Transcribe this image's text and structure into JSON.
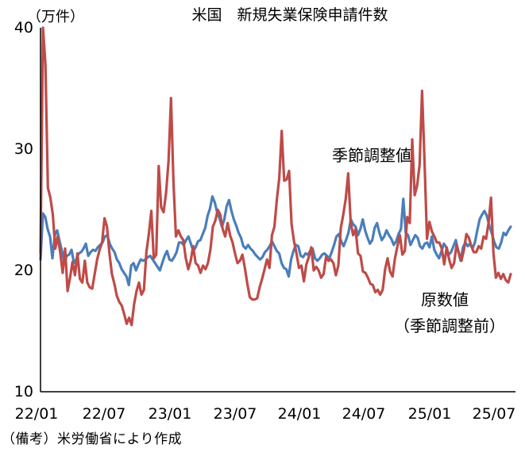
{
  "chart_data": {
    "type": "line",
    "title": "米国　新規失業保険申請件数",
    "unit_label": "（万件）",
    "ylim": [
      10,
      40
    ],
    "y_ticks": [
      10,
      20,
      30,
      40
    ],
    "x_ticks": [
      "22/01",
      "22/07",
      "23/01",
      "23/07",
      "24/01",
      "24/07",
      "25/01",
      "25/07"
    ],
    "grid": false,
    "series": [
      {
        "name": "季節調整値",
        "label": "季節調整値",
        "color": "#4a7ebb",
        "values": [
          20.9,
          24.7,
          24.4,
          23.4,
          22.8,
          21.0,
          22.9,
          23.3,
          22.4,
          21.6,
          20.7,
          21.2,
          21.3,
          21.7,
          20.6,
          20.9,
          21.4,
          21.5,
          21.8,
          22.2,
          21.2,
          21.5,
          21.7,
          21.6,
          21.9,
          22.1,
          22.3,
          22.8,
          22.9,
          22.2,
          21.8,
          21.5,
          20.9,
          20.6,
          20.1,
          19.8,
          19.5,
          18.8,
          20.4,
          20.6,
          20.0,
          20.5,
          20.9,
          20.8,
          20.9,
          21.1,
          21.2,
          20.9,
          20.6,
          20.3,
          20.0,
          20.6,
          21.2,
          21.6,
          20.9,
          20.8,
          21.1,
          21.5,
          22.3,
          22.3,
          22.1,
          22.5,
          22.8,
          22.2,
          21.6,
          21.9,
          22.4,
          22.5,
          23.0,
          23.5,
          24.5,
          25.1,
          26.1,
          25.6,
          24.8,
          24.3,
          23.6,
          24.2,
          25.3,
          25.8,
          24.9,
          24.2,
          23.7,
          23.1,
          22.7,
          22.0,
          21.8,
          22.1,
          21.8,
          21.6,
          21.3,
          21.1,
          20.9,
          21.1,
          21.5,
          21.7,
          22.0,
          22.4,
          22.0,
          21.6,
          21.4,
          20.6,
          20.2,
          20.1,
          19.5,
          20.9,
          21.6,
          22.1,
          22.0,
          21.2,
          21.1,
          21.4,
          21.3,
          21.6,
          21.8,
          21.0,
          20.8,
          21.0,
          21.3,
          21.4,
          21.2,
          21.0,
          21.5,
          22.1,
          22.8,
          23.0,
          22.4,
          22.0,
          22.5,
          23.1,
          24.2,
          23.8,
          23.6,
          22.9,
          23.4,
          24.2,
          23.3,
          22.7,
          22.2,
          22.5,
          23.5,
          23.9,
          23.1,
          22.5,
          22.8,
          23.3,
          22.9,
          22.6,
          22.1,
          22.4,
          23.0,
          23.4,
          25.9,
          23.1,
          22.9,
          22.1,
          22.5,
          22.9,
          22.7,
          22.0,
          21.8,
          22.2,
          22.3,
          21.9,
          22.8,
          21.7,
          21.3,
          21.0,
          21.6,
          22.2,
          21.9,
          21.3,
          21.5,
          22.0,
          22.5,
          21.6,
          20.8,
          21.9,
          22.3,
          22.0,
          22.2,
          21.8,
          22.3,
          23.3,
          24.2,
          24.6,
          24.9,
          24.5,
          23.7,
          23.1,
          22.4,
          21.9,
          21.8,
          22.3,
          23.1,
          22.9,
          23.3,
          23.6
        ]
      },
      {
        "name": "原数値",
        "label": "原数値",
        "label_sub": "（季節調整前）",
        "color": "#be4b48",
        "values": [
          21.4,
          40.0,
          37.0,
          26.8,
          26.0,
          24.6,
          21.8,
          22.8,
          21.5,
          19.8,
          21.8,
          18.3,
          19.4,
          20.7,
          19.6,
          21.4,
          19.3,
          19.0,
          20.8,
          19.0,
          18.6,
          18.5,
          19.7,
          20.9,
          21.7,
          22.3,
          24.3,
          23.6,
          21.4,
          19.7,
          18.9,
          17.9,
          17.4,
          17.1,
          16.4,
          15.6,
          16.1,
          15.5,
          17.2,
          18.3,
          19.0,
          18.0,
          18.4,
          21.5,
          23.0,
          24.9,
          21.0,
          21.3,
          28.6,
          25.2,
          24.8,
          26.4,
          29.0,
          34.2,
          27.3,
          22.8,
          23.3,
          22.8,
          22.5,
          21.0,
          20.1,
          20.8,
          22.0,
          20.6,
          20.4,
          19.8,
          20.4,
          20.1,
          20.6,
          21.7,
          23.6,
          24.1,
          25.0,
          24.6,
          23.4,
          22.8,
          23.9,
          22.9,
          22.3,
          21.4,
          20.6,
          20.8,
          21.3,
          20.2,
          18.9,
          17.8,
          17.6,
          17.6,
          17.7,
          18.6,
          19.3,
          20.1,
          20.9,
          20.2,
          22.9,
          23.6,
          25.8,
          27.6,
          31.5,
          27.4,
          27.5,
          28.2,
          23.8,
          22.4,
          21.4,
          20.2,
          20.4,
          19.1,
          20.5,
          21.1,
          21.9,
          20.0,
          20.3,
          20.0,
          19.4,
          19.7,
          21.1,
          20.8,
          20.9,
          20.6,
          19.6,
          20.4,
          23.5,
          24.6,
          25.9,
          28.0,
          24.0,
          22.9,
          23.4,
          21.4,
          21.2,
          19.9,
          19.8,
          19.4,
          18.9,
          18.8,
          18.2,
          18.4,
          18.0,
          18.4,
          20.1,
          21.0,
          19.9,
          19.5,
          21.0,
          22.0,
          22.9,
          21.3,
          21.6,
          24.4,
          23.9,
          30.8,
          26.2,
          27.0,
          28.7,
          34.8,
          29.0,
          22.6,
          24.0,
          23.2,
          22.8,
          22.3,
          22.3,
          21.8,
          20.5,
          21.9,
          20.9,
          20.2,
          20.6,
          22.1,
          21.4,
          20.8,
          21.7,
          23.0,
          22.7,
          22.0,
          21.5,
          21.5,
          22.0,
          21.8,
          22.8,
          22.6,
          23.9,
          26.0,
          21.4,
          19.4,
          19.8,
          19.3,
          19.7,
          19.2,
          19.0,
          19.7
        ]
      }
    ]
  },
  "footnote": "（備考）米労働省により作成"
}
